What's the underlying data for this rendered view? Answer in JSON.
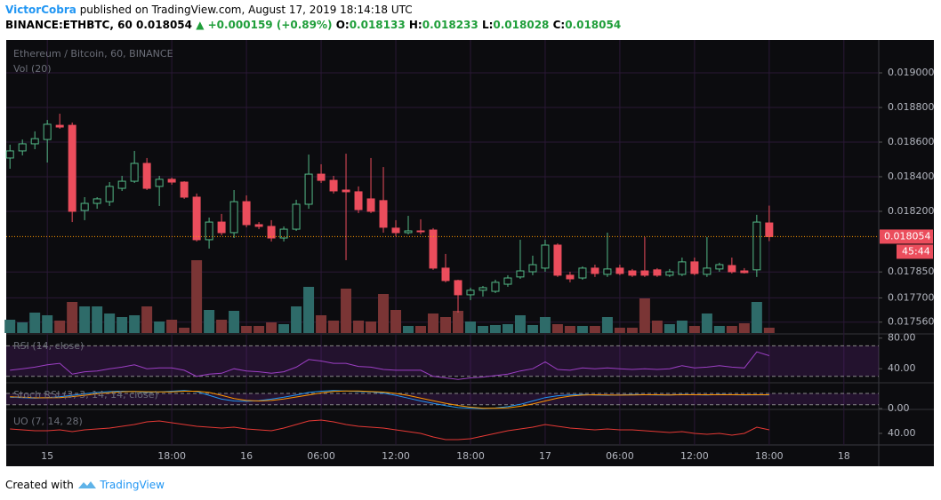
{
  "header": {
    "author": "VictorCobra",
    "published": "published on TradingView.com, August 17, 2019 18:14:18 UTC",
    "symbol": "BINANCE:ETHBTC, 60",
    "last": "0.018054",
    "change": "▲ +0.000159 (+0.89%)",
    "ohlc": [
      {
        "label": "O:",
        "value": "0.018133"
      },
      {
        "label": "H:",
        "value": "0.018233"
      },
      {
        "label": "L:",
        "value": "0.018028"
      },
      {
        "label": "C:",
        "value": "0.018054"
      }
    ]
  },
  "footer": {
    "text": "Created with",
    "brand": "TradingView"
  },
  "chart_data": {
    "type": "candlestick",
    "title": "Ethereum / Bitcoin, 60, BINANCE",
    "volume_label": "Vol (20)",
    "up_color": "#53b987",
    "down_color": "#eb4d5c",
    "up_volume_color": "#2e6b69",
    "down_volume_color": "#7a3535",
    "open": [
      0.018508,
      0.018549,
      0.01859,
      0.018615,
      0.018697,
      0.018697,
      0.018205,
      0.018246,
      0.018256,
      0.018333,
      0.018374,
      0.018477,
      0.018344,
      0.018385,
      0.018369,
      0.018282,
      0.018036,
      0.018138,
      0.018077,
      0.018256,
      0.018123,
      0.018113,
      0.018046,
      0.018097,
      0.018241,
      0.018415,
      0.018379,
      0.018323,
      0.018313,
      0.018272,
      0.018262,
      0.018103,
      0.018077,
      0.018087,
      0.018092,
      0.017872,
      0.0178,
      0.017718,
      0.017744,
      0.017738,
      0.017779,
      0.017821,
      0.017851,
      0.017872,
      0.018005,
      0.017831,
      0.017815,
      0.017872,
      0.017836,
      0.017872,
      0.017856,
      0.017856,
      0.017862,
      0.017831,
      0.017836,
      0.017908,
      0.017836,
      0.017867,
      0.017887,
      0.017856,
      0.017862,
      0.018133
    ],
    "high": [
      0.018585,
      0.018615,
      0.018662,
      0.018728,
      0.018764,
      0.018713,
      0.018282,
      0.018282,
      0.018369,
      0.018405,
      0.018549,
      0.018508,
      0.018405,
      0.018395,
      0.018374,
      0.018303,
      0.018164,
      0.018185,
      0.018323,
      0.018292,
      0.018138,
      0.018149,
      0.018113,
      0.018267,
      0.018528,
      0.018472,
      0.018405,
      0.018533,
      0.018344,
      0.018508,
      0.018456,
      0.018149,
      0.018174,
      0.018154,
      0.018103,
      0.017954,
      0.017805,
      0.017759,
      0.017769,
      0.017805,
      0.017831,
      0.018036,
      0.017944,
      0.018036,
      0.018015,
      0.017851,
      0.017882,
      0.017892,
      0.018077,
      0.017892,
      0.017867,
      0.018051,
      0.017872,
      0.017867,
      0.017933,
      0.017933,
      0.018051,
      0.017903,
      0.017933,
      0.017872,
      0.01818,
      0.018233
    ],
    "low": [
      0.018446,
      0.018523,
      0.018559,
      0.018482,
      0.018677,
      0.018138,
      0.018149,
      0.018215,
      0.018231,
      0.018318,
      0.018364,
      0.018323,
      0.018231,
      0.018354,
      0.018272,
      0.018026,
      0.017985,
      0.018062,
      0.018046,
      0.018108,
      0.018097,
      0.018026,
      0.018026,
      0.018087,
      0.018215,
      0.018364,
      0.018303,
      0.017918,
      0.01819,
      0.01819,
      0.018077,
      0.018056,
      0.018067,
      0.018067,
      0.017862,
      0.01779,
      0.017615,
      0.017687,
      0.017708,
      0.017728,
      0.017764,
      0.01781,
      0.017831,
      0.017851,
      0.017821,
      0.01779,
      0.017805,
      0.017821,
      0.017821,
      0.017831,
      0.017821,
      0.017821,
      0.017821,
      0.017821,
      0.017826,
      0.017831,
      0.017821,
      0.017851,
      0.017841,
      0.017841,
      0.017821,
      0.018028
    ],
    "close": [
      0.018549,
      0.01859,
      0.01862,
      0.018703,
      0.018687,
      0.0182,
      0.018246,
      0.018272,
      0.018344,
      0.018374,
      0.018477,
      0.018333,
      0.018385,
      0.018369,
      0.018282,
      0.018036,
      0.018138,
      0.018077,
      0.018256,
      0.018123,
      0.018113,
      0.018046,
      0.018097,
      0.018241,
      0.018415,
      0.018379,
      0.018318,
      0.018313,
      0.01821,
      0.0182,
      0.018108,
      0.018077,
      0.018087,
      0.018082,
      0.017872,
      0.0178,
      0.017718,
      0.017744,
      0.017759,
      0.01779,
      0.017815,
      0.017856,
      0.017892,
      0.018005,
      0.017831,
      0.01781,
      0.017872,
      0.017841,
      0.017867,
      0.017841,
      0.017831,
      0.017831,
      0.017831,
      0.017851,
      0.017908,
      0.017841,
      0.017872,
      0.017892,
      0.017851,
      0.017846,
      0.018138,
      0.018054
    ],
    "volume": [
      15,
      12,
      23,
      20,
      14,
      35,
      30,
      30,
      22,
      18,
      20,
      30,
      13,
      15,
      6,
      82,
      26,
      15,
      25,
      8,
      8,
      12,
      10,
      30,
      52,
      20,
      14,
      50,
      14,
      13,
      44,
      26,
      8,
      8,
      22,
      18,
      25,
      13,
      8,
      9,
      10,
      20,
      9,
      18,
      10,
      8,
      8,
      8,
      18,
      6,
      6,
      39,
      14,
      10,
      14,
      8,
      22,
      8,
      8,
      11,
      35,
      6
    ],
    "volume_ylim": [
      0,
      330
    ],
    "countdown": "45:44",
    "ylim": [
      0.017497,
      0.01919
    ],
    "yticks": [
      {
        "value": 0.019,
        "label": "0.019000"
      },
      {
        "value": 0.0188,
        "label": "0.018800"
      },
      {
        "value": 0.0186,
        "label": "0.018600"
      },
      {
        "value": 0.0184,
        "label": "0.018400"
      },
      {
        "value": 0.0182,
        "label": "0.018200"
      },
      {
        "value": 0.01785,
        "label": "0.017850"
      },
      {
        "value": 0.0177,
        "label": "0.017700"
      },
      {
        "value": 0.01756,
        "label": "0.017560"
      }
    ],
    "xlim": [
      -0.3,
      69.8
    ],
    "xticks": [
      {
        "value": 3,
        "label": "15"
      },
      {
        "value": 13,
        "label": "18:00"
      },
      {
        "value": 19,
        "label": "16"
      },
      {
        "value": 25,
        "label": "06:00"
      },
      {
        "value": 31,
        "label": "12:00"
      },
      {
        "value": 37,
        "label": "18:00"
      },
      {
        "value": 43,
        "label": "17"
      },
      {
        "value": 49,
        "label": "06:00"
      },
      {
        "value": 55,
        "label": "12:00"
      },
      {
        "value": 61,
        "label": "18:00"
      },
      {
        "value": 67,
        "label": "18"
      }
    ],
    "grid": true,
    "rsi": {
      "label": "RSI (14, close)",
      "color": "#9c3fc4",
      "levels": [
        70,
        30
      ],
      "ylim": [
        21.6,
        84.3
      ],
      "yticks": [
        {
          "value": 80,
          "label": "80.00"
        },
        {
          "value": 40,
          "label": "40.00"
        }
      ],
      "values": [
        38,
        40,
        42,
        45,
        47,
        33,
        36,
        37,
        40,
        42,
        45,
        40,
        41,
        41,
        38,
        30,
        33,
        34,
        40,
        37,
        36,
        34,
        36,
        42,
        52,
        50,
        47,
        47,
        43,
        42,
        39,
        38,
        38,
        38,
        30,
        28,
        26,
        28,
        29,
        31,
        33,
        37,
        40,
        49,
        39,
        38,
        41,
        40,
        41,
        40,
        39,
        40,
        39,
        40,
        44,
        41,
        42,
        44,
        42,
        41,
        62,
        57
      ]
    },
    "stoch": {
      "label": "Stoch RSI (3, 3, 14, 14, close)",
      "levels": [
        80,
        20
      ],
      "ylim": [
        -4.7,
        131.8
      ],
      "yticks": [
        {
          "value": 0,
          "label": "0.00"
        }
      ],
      "series": [
        {
          "color": "#2196f3",
          "values": [
            60,
            58,
            55,
            58,
            62,
            70,
            78,
            85,
            90,
            92,
            90,
            85,
            88,
            92,
            95,
            90,
            70,
            50,
            40,
            38,
            42,
            50,
            60,
            72,
            85,
            92,
            95,
            93,
            90,
            88,
            82,
            70,
            55,
            40,
            28,
            15,
            5,
            2,
            0,
            3,
            10,
            22,
            40,
            58,
            68,
            72,
            74,
            72,
            70,
            72,
            74,
            73,
            72,
            72,
            74,
            73,
            72,
            74,
            73,
            72,
            73,
            72
          ]
        },
        {
          "color": "#ff9800",
          "values": [
            62,
            60,
            57,
            57,
            58,
            63,
            70,
            78,
            84,
            89,
            91,
            89,
            88,
            88,
            92,
            92,
            85,
            70,
            53,
            43,
            40,
            43,
            51,
            61,
            72,
            83,
            91,
            93,
            93,
            90,
            87,
            80,
            69,
            55,
            41,
            28,
            16,
            7,
            2,
            2,
            4,
            12,
            24,
            40,
            55,
            66,
            71,
            73,
            72,
            71,
            72,
            73,
            73,
            72,
            73,
            73,
            73,
            73,
            73,
            73,
            73,
            73
          ]
        }
      ]
    },
    "uo": {
      "label": "UO (7, 14, 28)",
      "color": "#e53935",
      "ylim": [
        28,
        66
      ],
      "yticks": [
        {
          "value": 40,
          "label": "40.00"
        }
      ],
      "values": [
        45,
        44,
        43,
        43,
        44,
        42,
        44,
        45,
        46,
        48,
        50,
        53,
        54,
        52,
        50,
        48,
        47,
        46,
        47,
        45,
        44,
        43,
        46,
        50,
        54,
        55,
        53,
        50,
        48,
        47,
        46,
        44,
        42,
        40,
        36,
        33,
        33,
        34,
        37,
        40,
        43,
        45,
        47,
        50,
        48,
        46,
        45,
        44,
        45,
        44,
        44,
        43,
        42,
        41,
        42,
        40,
        39,
        40,
        38,
        40,
        47,
        44
      ]
    }
  }
}
